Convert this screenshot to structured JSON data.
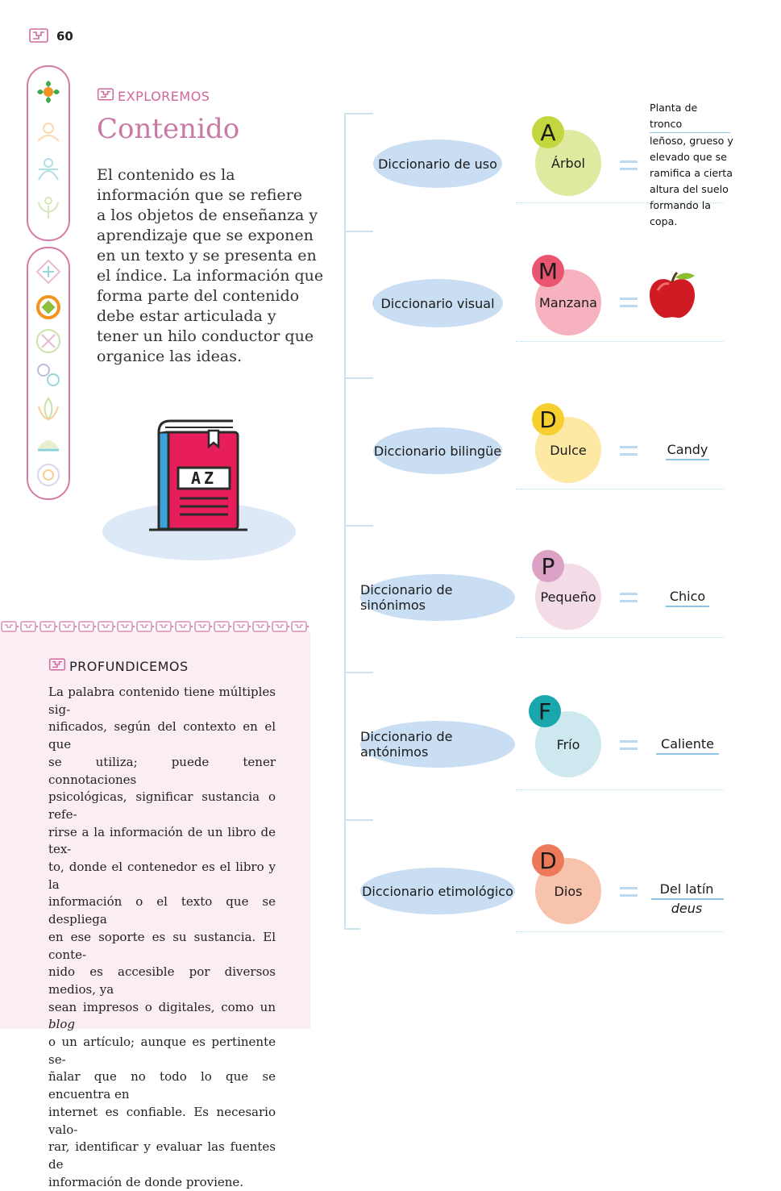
{
  "page": {
    "number": "60"
  },
  "explore": {
    "tag": "EXPLOREMOS",
    "title": "Contenido",
    "lines": [
      "El contenido es la",
      "información que se refiere",
      "a los objetos de enseñanza y",
      "aprendizaje que se exponen",
      "en un texto y se presenta en",
      "el índice. La información que",
      "forma parte del contenido",
      "debe estar articulada y",
      "tener un hilo conductor que",
      "organice las ideas."
    ]
  },
  "book": {
    "label": "AZ"
  },
  "deepen": {
    "tag": "PROFUNDICEMOS",
    "lines": [
      "La palabra contenido tiene múltiples sig-",
      "nificados, según del contexto en el que",
      "se utiliza; puede tener connotaciones",
      "psicológicas, significar sustancia o refe-",
      "rirse a la información de un libro de tex-",
      "to, donde el contenedor es el libro y la",
      "información o el texto que se despliega",
      "en ese soporte es su sustancia. El conte-",
      "nido es accesible por diversos medios, ya",
      "sean impresos o digitales, como un",
      "o un artículo; aunque es pertinente se-",
      "ñalar que no todo lo que se encuentra en",
      "internet es confiable. Es necesario valo-",
      "rar, identificar y evaluar las fuentes de",
      "información de donde proviene."
    ],
    "italic_word": "blog"
  },
  "dictionaries": [
    {
      "name": "Diccionario de uso",
      "letter": "A",
      "word": "Árbol",
      "big_color": "#dfe9a0",
      "small_color": "#c3d63e",
      "definition": [
        "Planta de tronco",
        "leñoso, grueso y",
        "elevado que se",
        "ramifica a cierta",
        "altura del suelo",
        "formando la copa."
      ]
    },
    {
      "name": "Diccionario visual",
      "letter": "M",
      "word": "Manzana",
      "big_color": "#f6b3bf",
      "small_color": "#e9546f",
      "image": "apple-image"
    },
    {
      "name": "Diccionario bilingüe",
      "letter": "D",
      "word": "Dulce",
      "big_color": "#fde9a3",
      "small_color": "#f7cf2f",
      "result": "Candy"
    },
    {
      "name": "Diccionario de sinónimos",
      "letter": "P",
      "word": "Pequeño",
      "big_color": "#f3dbe8",
      "small_color": "#dba2c6",
      "result": "Chico"
    },
    {
      "name": "Diccionario de antónimos",
      "letter": "F",
      "word": "Frío",
      "big_color": "#cde8ee",
      "small_color": "#1aa6ad",
      "result": "Caliente"
    },
    {
      "name": "Diccionario etimológico",
      "letter": "D",
      "word": "Dios",
      "big_color": "#f8c3ad",
      "small_color": "#ec7a5a",
      "result": "Del latín",
      "result_italic": "deus"
    }
  ]
}
